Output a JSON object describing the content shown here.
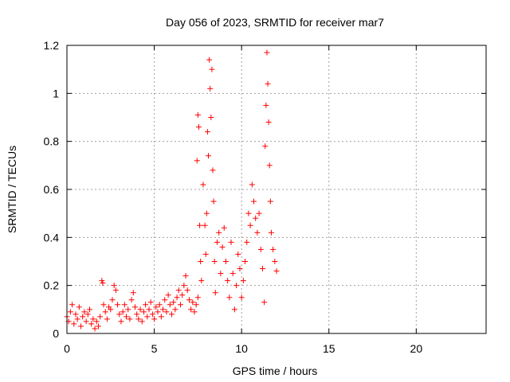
{
  "chart_data": {
    "type": "scatter",
    "title": "Day 056 of 2023, SRMTID for receiver mar7",
    "xlabel": "GPS time / hours",
    "ylabel": "SRMTID / TECUs",
    "xlim": [
      0,
      24
    ],
    "ylim": [
      0,
      1.2
    ],
    "x_ticks": [
      0,
      5,
      10,
      15,
      20
    ],
    "y_ticks": [
      0,
      0.2,
      0.4,
      0.6,
      0.8,
      1,
      1.2
    ],
    "x_tick_labels": [
      "0",
      "5",
      "10",
      "15",
      "20"
    ],
    "y_tick_labels": [
      "0",
      "0.2",
      "0.4",
      "0.6",
      "0.8",
      "1",
      "1.2"
    ],
    "grid": true,
    "marker": "plus",
    "series": [
      {
        "name": "SRMTID",
        "color": "#ff0000",
        "points": [
          [
            0.0,
            0.07
          ],
          [
            0.1,
            0.05
          ],
          [
            0.2,
            0.09
          ],
          [
            0.3,
            0.12
          ],
          [
            0.4,
            0.04
          ],
          [
            0.5,
            0.08
          ],
          [
            0.6,
            0.06
          ],
          [
            0.7,
            0.11
          ],
          [
            0.8,
            0.03
          ],
          [
            0.9,
            0.07
          ],
          [
            1.0,
            0.09
          ],
          [
            1.1,
            0.05
          ],
          [
            1.2,
            0.08
          ],
          [
            1.3,
            0.1
          ],
          [
            1.4,
            0.04
          ],
          [
            1.5,
            0.06
          ],
          [
            1.6,
            0.02
          ],
          [
            1.7,
            0.05
          ],
          [
            1.8,
            0.03
          ],
          [
            1.9,
            0.07
          ],
          [
            2.0,
            0.22
          ],
          [
            2.05,
            0.21
          ],
          [
            2.1,
            0.12
          ],
          [
            2.2,
            0.09
          ],
          [
            2.3,
            0.06
          ],
          [
            2.4,
            0.11
          ],
          [
            2.5,
            0.1
          ],
          [
            2.6,
            0.14
          ],
          [
            2.7,
            0.2
          ],
          [
            2.8,
            0.18
          ],
          [
            2.9,
            0.12
          ],
          [
            3.0,
            0.08
          ],
          [
            3.1,
            0.05
          ],
          [
            3.2,
            0.09
          ],
          [
            3.3,
            0.12
          ],
          [
            3.4,
            0.07
          ],
          [
            3.5,
            0.1
          ],
          [
            3.6,
            0.06
          ],
          [
            3.7,
            0.14
          ],
          [
            3.8,
            0.17
          ],
          [
            3.9,
            0.11
          ],
          [
            4.0,
            0.08
          ],
          [
            4.1,
            0.06
          ],
          [
            4.2,
            0.1
          ],
          [
            4.3,
            0.05
          ],
          [
            4.4,
            0.09
          ],
          [
            4.5,
            0.12
          ],
          [
            4.6,
            0.07
          ],
          [
            4.7,
            0.1
          ],
          [
            4.8,
            0.13
          ],
          [
            4.9,
            0.08
          ],
          [
            5.0,
            0.06
          ],
          [
            5.1,
            0.11
          ],
          [
            5.2,
            0.09
          ],
          [
            5.3,
            0.12
          ],
          [
            5.4,
            0.07
          ],
          [
            5.5,
            0.1
          ],
          [
            5.6,
            0.14
          ],
          [
            5.7,
            0.09
          ],
          [
            5.8,
            0.16
          ],
          [
            5.9,
            0.12
          ],
          [
            6.0,
            0.08
          ],
          [
            6.1,
            0.13
          ],
          [
            6.2,
            0.1
          ],
          [
            6.3,
            0.15
          ],
          [
            6.4,
            0.18
          ],
          [
            6.5,
            0.12
          ],
          [
            6.6,
            0.16
          ],
          [
            6.7,
            0.2
          ],
          [
            6.8,
            0.24
          ],
          [
            6.9,
            0.18
          ],
          [
            7.0,
            0.14
          ],
          [
            7.1,
            0.1
          ],
          [
            7.2,
            0.13
          ],
          [
            7.3,
            0.09
          ],
          [
            7.4,
            0.12
          ],
          [
            7.5,
            0.15
          ],
          [
            7.45,
            0.72
          ],
          [
            7.5,
            0.91
          ],
          [
            7.55,
            0.86
          ],
          [
            7.6,
            0.45
          ],
          [
            7.65,
            0.3
          ],
          [
            7.7,
            0.22
          ],
          [
            7.8,
            0.62
          ],
          [
            7.9,
            0.45
          ],
          [
            7.95,
            0.33
          ],
          [
            8.0,
            0.5
          ],
          [
            8.05,
            0.84
          ],
          [
            8.1,
            0.74
          ],
          [
            8.15,
            1.14
          ],
          [
            8.2,
            1.02
          ],
          [
            8.25,
            0.9
          ],
          [
            8.3,
            1.1
          ],
          [
            8.35,
            0.68
          ],
          [
            8.4,
            0.55
          ],
          [
            8.45,
            0.3
          ],
          [
            8.5,
            0.17
          ],
          [
            8.6,
            0.38
          ],
          [
            8.7,
            0.42
          ],
          [
            8.8,
            0.25
          ],
          [
            8.9,
            0.36
          ],
          [
            9.0,
            0.44
          ],
          [
            9.1,
            0.3
          ],
          [
            9.2,
            0.22
          ],
          [
            9.3,
            0.15
          ],
          [
            9.4,
            0.38
          ],
          [
            9.5,
            0.25
          ],
          [
            9.6,
            0.1
          ],
          [
            9.7,
            0.2
          ],
          [
            9.8,
            0.33
          ],
          [
            9.9,
            0.27
          ],
          [
            10.0,
            0.15
          ],
          [
            10.1,
            0.22
          ],
          [
            10.2,
            0.3
          ],
          [
            10.3,
            0.38
          ],
          [
            10.4,
            0.5
          ],
          [
            10.5,
            0.45
          ],
          [
            10.6,
            0.62
          ],
          [
            10.7,
            0.55
          ],
          [
            10.8,
            0.48
          ],
          [
            10.9,
            0.42
          ],
          [
            11.0,
            0.5
          ],
          [
            11.1,
            0.35
          ],
          [
            11.2,
            0.27
          ],
          [
            11.3,
            0.13
          ],
          [
            11.35,
            0.78
          ],
          [
            11.4,
            0.95
          ],
          [
            11.45,
            1.17
          ],
          [
            11.5,
            1.04
          ],
          [
            11.55,
            0.88
          ],
          [
            11.6,
            0.7
          ],
          [
            11.65,
            0.55
          ],
          [
            11.7,
            0.42
          ],
          [
            11.8,
            0.35
          ],
          [
            11.9,
            0.3
          ],
          [
            12.0,
            0.26
          ]
        ]
      }
    ]
  }
}
